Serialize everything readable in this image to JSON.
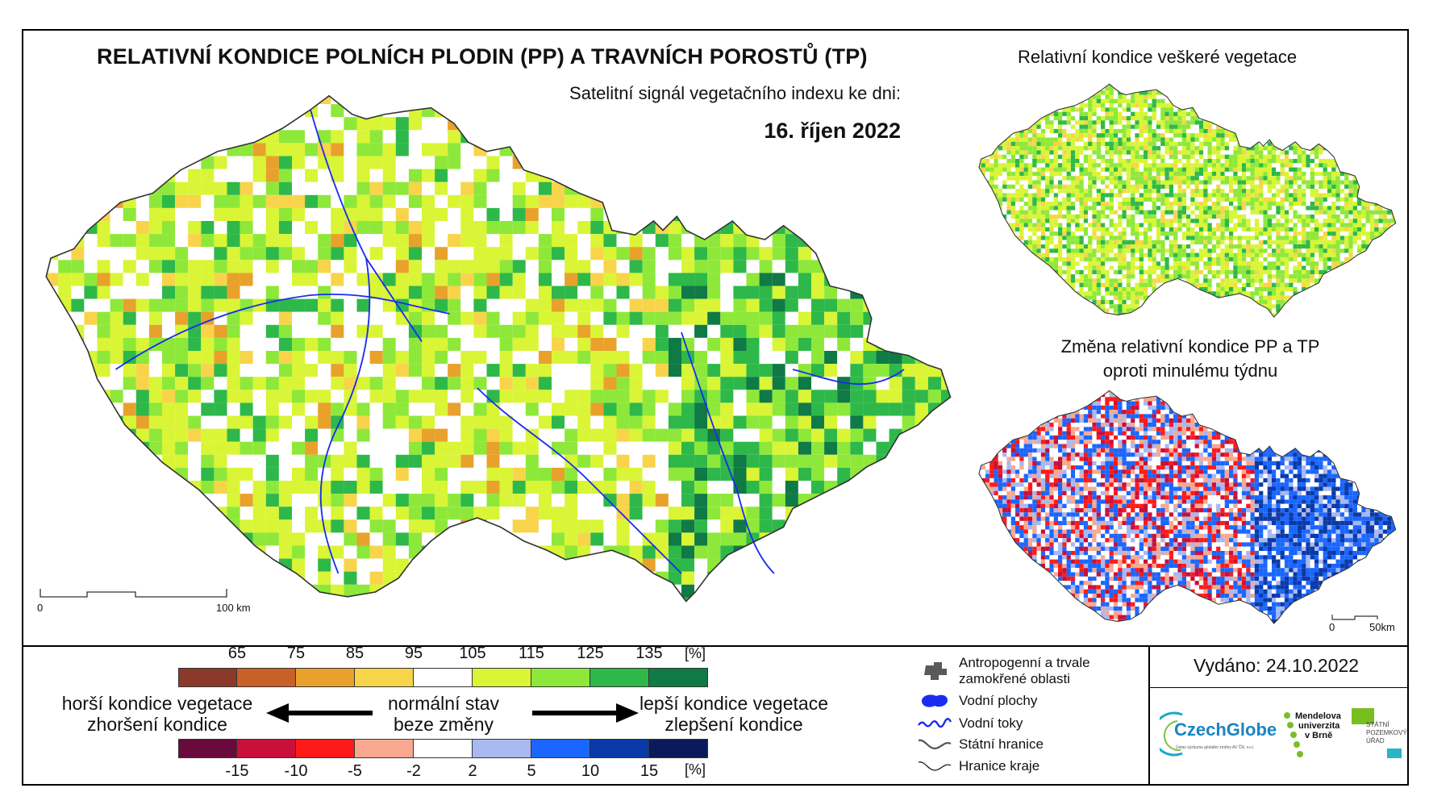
{
  "title": "RELATIVNÍ KONDICE POLNÍCH PLODIN (PP) A TRAVNÍCH POROSTŮ (TP)",
  "subtitle": "Satelitní signál vegetačního indexu ke dni:",
  "date": "16. říjen 2022",
  "inset_top": {
    "title": "Relativní kondice veškeré vegetace"
  },
  "inset_bottom": {
    "title_line1": "Změna relativní kondice PP a TP",
    "title_line2": "oproti minulému týdnu"
  },
  "main_scale": {
    "zero": "0",
    "max": "100 km"
  },
  "inset_scale": {
    "zero": "0",
    "max": "50km"
  },
  "legend_condition": {
    "levels": [
      "65",
      "75",
      "85",
      "95",
      "105",
      "115",
      "125",
      "135"
    ],
    "unit": "[%]",
    "colors": [
      "#8b3a2a",
      "#c8602a",
      "#e8a22c",
      "#f8d44a",
      "#ffffff",
      "#d9f536",
      "#8ee83a",
      "#2eb84a",
      "#0f7a45"
    ]
  },
  "legend_change": {
    "levels": [
      "-15",
      "-10",
      "-5",
      "-2",
      "2",
      "5",
      "10",
      "15"
    ],
    "unit": "[%]",
    "colors": [
      "#6a0a3c",
      "#c8103a",
      "#ff1a1a",
      "#f8a890",
      "#ffffff",
      "#a8b8f0",
      "#1a66ff",
      "#0a3aa8",
      "#0a1a5a"
    ]
  },
  "phrases": {
    "worse": [
      "horší kondice vegetace",
      "zhoršení kondice"
    ],
    "normal": [
      "normální stav",
      "beze změny"
    ],
    "better": [
      "lepší kondice vegetace",
      "zlepšení kondice"
    ]
  },
  "map_key": {
    "urban": [
      "Antropogenní a trvale",
      "zamokřené oblasti"
    ],
    "water_bodies": "Vodní plochy",
    "rivers": "Vodní toky",
    "state_border": "Státní hranice",
    "region_border": "Hranice kraje"
  },
  "issued": "Vydáno: 24.10.2022",
  "logos": {
    "czechglobe": "CzechGlobe",
    "czechglobe_sub": "Ústav výzkumu globální změny AV ČR, v.v.i.",
    "mendel": [
      "Mendelova",
      "univerzita",
      "v Brně"
    ],
    "spu": [
      "STÁTNÍ",
      "POZEMKOVÝ",
      "ÚŘAD"
    ]
  }
}
